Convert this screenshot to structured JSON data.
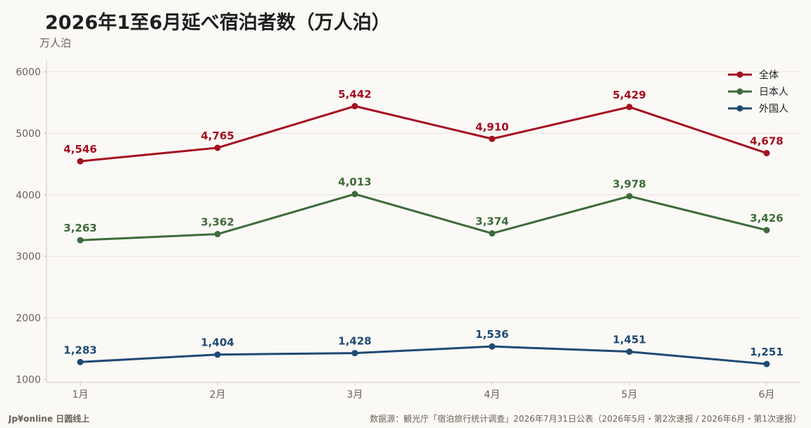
{
  "chart_data": {
    "type": "line",
    "title": "2026年1至6月延べ宿泊者数（万人泊）",
    "ylabel": "万人泊",
    "categories": [
      "1月",
      "2月",
      "3月",
      "4月",
      "5月",
      "6月"
    ],
    "ylim": [
      1000,
      6000
    ],
    "yticks": [
      1000,
      2000,
      3000,
      4000,
      5000,
      6000
    ],
    "grid": true,
    "legend_position": "top-right",
    "series": [
      {
        "name": "全体",
        "color": "#a50f20",
        "values": [
          4546,
          4765,
          5442,
          4910,
          5429,
          4678
        ],
        "labels": [
          "4,546",
          "4,765",
          "5,442",
          "4,910",
          "5,429",
          "4,678"
        ]
      },
      {
        "name": "日本人",
        "color": "#3d6b3a",
        "values": [
          3263,
          3362,
          4013,
          3374,
          3978,
          3426
        ],
        "labels": [
          "3,263",
          "3,362",
          "4,013",
          "3,374",
          "3,978",
          "3,426"
        ]
      },
      {
        "name": "外国人",
        "color": "#1f4a73",
        "values": [
          1283,
          1404,
          1428,
          1536,
          1451,
          1251
        ],
        "labels": [
          "1,283",
          "1,404",
          "1,428",
          "1,536",
          "1,451",
          "1,251"
        ]
      }
    ]
  },
  "footer": {
    "brand": "Jp¥online 日圆线上",
    "source": "数据源：観光庁「宿泊旅行统计调查」2026年7月31日公表（2026年5月・第2次速报 / 2026年6月・第1次速报）"
  }
}
